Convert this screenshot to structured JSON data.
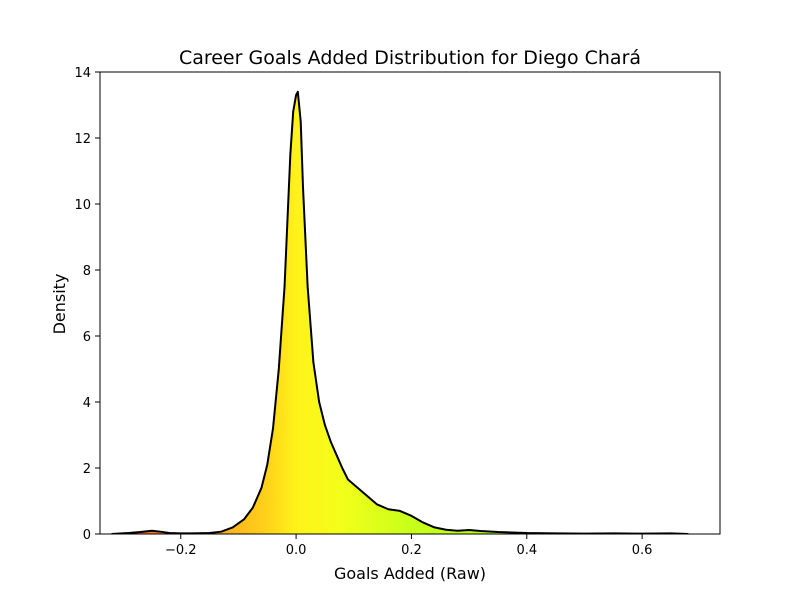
{
  "chart_data": {
    "type": "area",
    "title": "Career Goals Added Distribution for Diego Chará",
    "xlabel": "Goals Added (Raw)",
    "ylabel": "Density",
    "xlim": [
      -0.34,
      0.735
    ],
    "ylim": [
      0,
      14
    ],
    "x_ticks": [
      -0.2,
      0.0,
      0.2,
      0.4,
      0.6
    ],
    "x_tick_labels": [
      "−0.2",
      "0.0",
      "0.2",
      "0.4",
      "0.6"
    ],
    "y_ticks": [
      0,
      2,
      4,
      6,
      8,
      10,
      12,
      14
    ],
    "y_tick_labels": [
      "0",
      "2",
      "4",
      "6",
      "8",
      "10",
      "12",
      "14"
    ],
    "grid": false,
    "legend": "none",
    "line_color": "#000000",
    "fill_gradient": [
      {
        "x": -0.32,
        "color": "#ff5a1f"
      },
      {
        "x": -0.05,
        "color": "#ffd21a"
      },
      {
        "x": 0.0,
        "color": "#fff21a"
      },
      {
        "x": 0.08,
        "color": "#f2ff1a"
      },
      {
        "x": 0.2,
        "color": "#c8ff1a"
      },
      {
        "x": 0.68,
        "color": "#8cff1a"
      }
    ],
    "series": [
      {
        "x": [
          -0.32,
          -0.29,
          -0.27,
          -0.25,
          -0.235,
          -0.22,
          -0.2,
          -0.18,
          -0.15,
          -0.13,
          -0.11,
          -0.09,
          -0.075,
          -0.06,
          -0.05,
          -0.04,
          -0.03,
          -0.02,
          -0.015,
          -0.01,
          -0.005,
          0.0,
          0.003,
          0.008,
          0.012,
          0.02,
          0.03,
          0.04,
          0.05,
          0.06,
          0.07,
          0.08,
          0.09,
          0.1,
          0.12,
          0.14,
          0.16,
          0.18,
          0.2,
          0.22,
          0.24,
          0.26,
          0.28,
          0.3,
          0.32,
          0.35,
          0.4,
          0.45,
          0.5,
          0.55,
          0.6,
          0.65,
          0.68
        ],
        "y": [
          0.0,
          0.03,
          0.06,
          0.1,
          0.07,
          0.03,
          0.02,
          0.02,
          0.03,
          0.07,
          0.2,
          0.45,
          0.8,
          1.4,
          2.1,
          3.2,
          5.0,
          7.5,
          9.5,
          11.5,
          12.8,
          13.3,
          13.4,
          12.5,
          10.5,
          7.5,
          5.2,
          4.0,
          3.3,
          2.8,
          2.4,
          2.0,
          1.65,
          1.5,
          1.2,
          0.9,
          0.75,
          0.7,
          0.55,
          0.35,
          0.2,
          0.13,
          0.1,
          0.12,
          0.09,
          0.06,
          0.03,
          0.02,
          0.01,
          0.02,
          0.01,
          0.02,
          0.0
        ]
      }
    ]
  }
}
